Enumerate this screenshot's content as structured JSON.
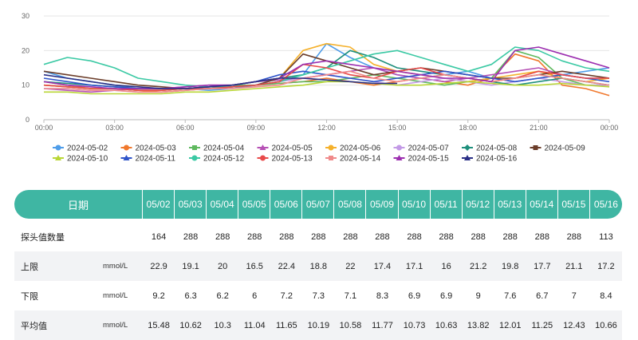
{
  "chart_data": {
    "type": "line",
    "x_ticks": [
      "00:00",
      "03:00",
      "06:00",
      "09:00",
      "12:00",
      "15:00",
      "18:00",
      "21:00",
      "00:00"
    ],
    "y_ticks": [
      0,
      10,
      20,
      30
    ],
    "ylim": [
      0,
      30
    ],
    "grid": true,
    "legend_position": "bottom",
    "series": [
      {
        "name": "2024-05-02",
        "color": "#4f9de9",
        "marker": "circle",
        "values": [
          14,
          12,
          11,
          10,
          9,
          9,
          9,
          8.5,
          9,
          10,
          11,
          13,
          22,
          18,
          15,
          13,
          12,
          13,
          14,
          12,
          11,
          12,
          13,
          14,
          15
        ]
      },
      {
        "name": "2024-05-03",
        "color": "#f0782d",
        "marker": "circle",
        "values": [
          11,
          10,
          9,
          9,
          8.5,
          8,
          8.5,
          9,
          9.5,
          10,
          10.5,
          11,
          12,
          11,
          10,
          11,
          12,
          11,
          10,
          12,
          19,
          17,
          10,
          9,
          7
        ]
      },
      {
        "name": "2024-05-04",
        "color": "#5fb95f",
        "marker": "square",
        "values": [
          10,
          9.5,
          9,
          9,
          8.5,
          8.5,
          9,
          9.5,
          10,
          10,
          10.5,
          11,
          11,
          12,
          13,
          12,
          11,
          10,
          11,
          12,
          20,
          18,
          12,
          10,
          10
        ]
      },
      {
        "name": "2024-05-05",
        "color": "#b651b5",
        "marker": "triangle",
        "values": [
          9,
          8.5,
          8,
          8.5,
          9,
          9,
          9.5,
          10,
          10,
          11,
          11.5,
          12,
          13,
          14,
          15,
          13,
          12,
          11,
          12,
          13,
          14,
          15,
          13,
          12,
          12
        ]
      },
      {
        "name": "2024-05-06",
        "color": "#f5b12c",
        "marker": "circle",
        "values": [
          10,
          9.5,
          9,
          9,
          8.5,
          8.5,
          9,
          9.5,
          10,
          11,
          12,
          20,
          22,
          21,
          16,
          14,
          13,
          12,
          11,
          12,
          13,
          14,
          12,
          11,
          12
        ]
      },
      {
        "name": "2024-05-07",
        "color": "#c39ae6",
        "marker": "circle",
        "values": [
          9,
          9,
          8.5,
          8.5,
          8,
          8,
          8.5,
          9,
          9.5,
          10,
          11,
          12,
          13,
          12,
          11,
          10,
          11,
          12,
          11,
          10,
          11,
          12,
          11,
          10,
          10
        ]
      },
      {
        "name": "2024-05-08",
        "color": "#1e8f7c",
        "marker": "diamond",
        "values": [
          11,
          10.5,
          10,
          9.5,
          9,
          9,
          9,
          9.5,
          10,
          11,
          12,
          13,
          15,
          20,
          18,
          15,
          14,
          13,
          12,
          11,
          10,
          11,
          12,
          11,
          10
        ]
      },
      {
        "name": "2024-05-09",
        "color": "#6b3d2a",
        "marker": "square",
        "values": [
          14,
          13,
          12,
          11,
          10,
          9.5,
          9,
          9,
          9.5,
          10,
          12,
          19,
          17,
          15,
          13,
          14,
          15,
          14,
          13,
          12,
          12,
          13,
          14,
          13,
          12
        ]
      },
      {
        "name": "2024-05-10",
        "color": "#b9d636",
        "marker": "triangle",
        "values": [
          8,
          8,
          7.5,
          7.5,
          7.5,
          7.5,
          8,
          8,
          8.5,
          9,
          9.5,
          10,
          11,
          11,
          10.5,
          10,
          10,
          10.5,
          11,
          10.5,
          10,
          10,
          10.5,
          10,
          9.5
        ]
      },
      {
        "name": "2024-05-11",
        "color": "#2f54c9",
        "marker": "triangle",
        "values": [
          12,
          11,
          10,
          9.5,
          9,
          9,
          9,
          9.5,
          10,
          11,
          13,
          14,
          13,
          12,
          11,
          12,
          13,
          14,
          13,
          12,
          11,
          12,
          13,
          12,
          11
        ]
      },
      {
        "name": "2024-05-12",
        "color": "#3bc9a4",
        "marker": "circle",
        "values": [
          16,
          18,
          17,
          15,
          12,
          11,
          10,
          9.5,
          9.5,
          10,
          11,
          13,
          15,
          17,
          19,
          20,
          18,
          16,
          14,
          16,
          21,
          20,
          17,
          15,
          14
        ]
      },
      {
        "name": "2024-05-13",
        "color": "#e84a4a",
        "marker": "circle",
        "values": [
          10,
          9.5,
          9,
          9,
          8.5,
          8.5,
          9,
          9,
          9.5,
          10,
          11,
          16,
          15,
          13,
          12,
          14,
          15,
          13,
          12,
          11,
          12,
          14,
          13,
          12,
          12
        ]
      },
      {
        "name": "2024-05-14",
        "color": "#f08a8a",
        "marker": "square",
        "values": [
          9,
          9,
          8.5,
          8.5,
          8,
          8,
          8.5,
          9,
          9,
          9.5,
          10,
          12,
          13,
          14,
          12,
          11,
          12,
          13,
          12,
          11,
          12,
          13,
          12,
          11,
          10
        ]
      },
      {
        "name": "2024-05-15",
        "color": "#9c2fb0",
        "marker": "triangle",
        "values": [
          11,
          10,
          9.5,
          9,
          9,
          9,
          9.5,
          10,
          10,
          11,
          12,
          16,
          17,
          16,
          15,
          14,
          13,
          12,
          12,
          11,
          20,
          21,
          19,
          17,
          15
        ]
      },
      {
        "name": "2024-05-16",
        "color": "#2a2f86",
        "marker": "triangle",
        "values": [
          13,
          12,
          11,
          10,
          9.5,
          9,
          9,
          9.5,
          10,
          11,
          12,
          12,
          11.5,
          11,
          10.5,
          10.5
        ]
      }
    ]
  },
  "table": {
    "header_label": "日期",
    "dates": [
      "05/02",
      "05/03",
      "05/04",
      "05/05",
      "05/06",
      "05/07",
      "05/08",
      "05/09",
      "05/10",
      "05/11",
      "05/12",
      "05/13",
      "05/14",
      "05/15",
      "05/16"
    ],
    "rows": [
      {
        "label": "探头值数量",
        "unit": "",
        "values": [
          "164",
          "288",
          "288",
          "288",
          "288",
          "288",
          "288",
          "288",
          "288",
          "288",
          "288",
          "288",
          "288",
          "288",
          "113"
        ]
      },
      {
        "label": "上限",
        "unit": "mmol/L",
        "values": [
          "22.9",
          "19.1",
          "20",
          "16.5",
          "22.4",
          "18.8",
          "22",
          "17.4",
          "17.1",
          "16",
          "21.2",
          "19.8",
          "17.7",
          "21.1",
          "17.2"
        ]
      },
      {
        "label": "下限",
        "unit": "mmol/L",
        "values": [
          "9.2",
          "6.3",
          "6.2",
          "6",
          "7.2",
          "7.3",
          "7.1",
          "8.3",
          "6.9",
          "6.9",
          "9",
          "7.6",
          "6.7",
          "7",
          "8.4"
        ]
      },
      {
        "label": "平均值",
        "unit": "mmol/L",
        "values": [
          "15.48",
          "10.62",
          "10.3",
          "11.04",
          "11.65",
          "10.19",
          "10.58",
          "11.77",
          "10.73",
          "10.63",
          "13.82",
          "12.01",
          "11.25",
          "12.43",
          "10.66"
        ]
      }
    ]
  }
}
